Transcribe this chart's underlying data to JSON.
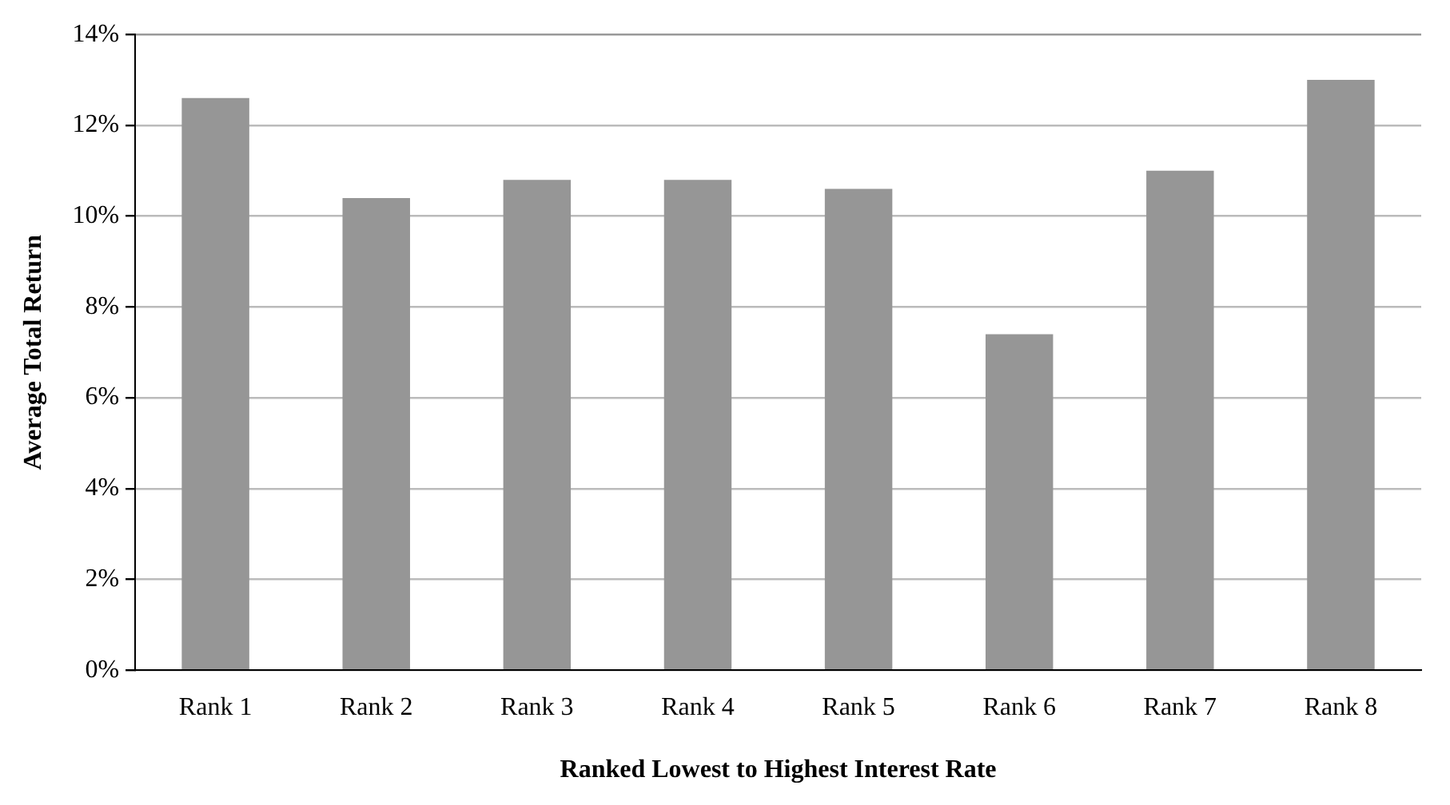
{
  "chart_data": {
    "type": "bar",
    "xlabel": "Ranked Lowest to Highest Interest Rate",
    "ylabel": "Average Total Return",
    "categories": [
      "Rank 1",
      "Rank 2",
      "Rank 3",
      "Rank 4",
      "Rank 5",
      "Rank 6",
      "Rank 7",
      "Rank 8"
    ],
    "values": [
      12.6,
      10.4,
      10.8,
      10.8,
      10.6,
      7.4,
      11.0,
      13.0
    ],
    "color": "#969696",
    "ylim": [
      0,
      14
    ],
    "yticks": [
      {
        "value": 0,
        "label": "0%"
      },
      {
        "value": 2,
        "label": "2%"
      },
      {
        "value": 4,
        "label": "4%"
      },
      {
        "value": 6,
        "label": "6%"
      },
      {
        "value": 8,
        "label": "8%"
      },
      {
        "value": 10,
        "label": "10%"
      },
      {
        "value": 12,
        "label": "12%"
      },
      {
        "value": 14,
        "label": "14%"
      }
    ],
    "grid": "y",
    "legend": false
  }
}
